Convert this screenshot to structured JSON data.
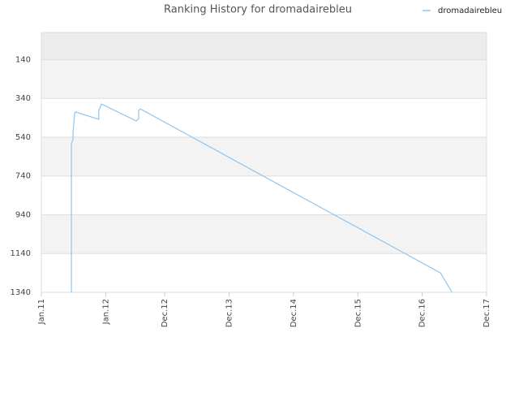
{
  "chart_data": {
    "type": "line",
    "title": "Ranking History for dromadairebleu",
    "x": [
      5.6,
      5.6,
      5.9,
      5.9,
      6.05,
      6.2,
      6.35,
      10.7,
      10.7,
      11.05,
      11.2,
      17.7,
      18.15,
      18.15,
      18.45,
      74.4,
      76.55
    ],
    "series": [
      {
        "name": "dromadairebleu",
        "color": "#8ec6f0",
        "values": [
          1340,
          570,
          553,
          519,
          469,
          419,
          410,
          448,
          402,
          381,
          369,
          456,
          444,
          402,
          394,
          1240,
          1340
        ]
      }
    ],
    "xlim": [
      0,
      83
    ],
    "xticks": [
      {
        "value": 0,
        "label": "Jan.11"
      },
      {
        "value": 12,
        "label": "Jan.12"
      },
      {
        "value": 23,
        "label": "Dec.12"
      },
      {
        "value": 35,
        "label": "Dec.13"
      },
      {
        "value": 47,
        "label": "Dec.14"
      },
      {
        "value": 59,
        "label": "Dec.15"
      },
      {
        "value": 71,
        "label": "Dec.16"
      },
      {
        "value": 83,
        "label": "Dec.17"
      }
    ],
    "ylim": [
      1340,
      0
    ],
    "yticks": [
      140,
      340,
      540,
      740,
      940,
      1140,
      1340
    ],
    "grid": true,
    "legend": "top-right"
  }
}
